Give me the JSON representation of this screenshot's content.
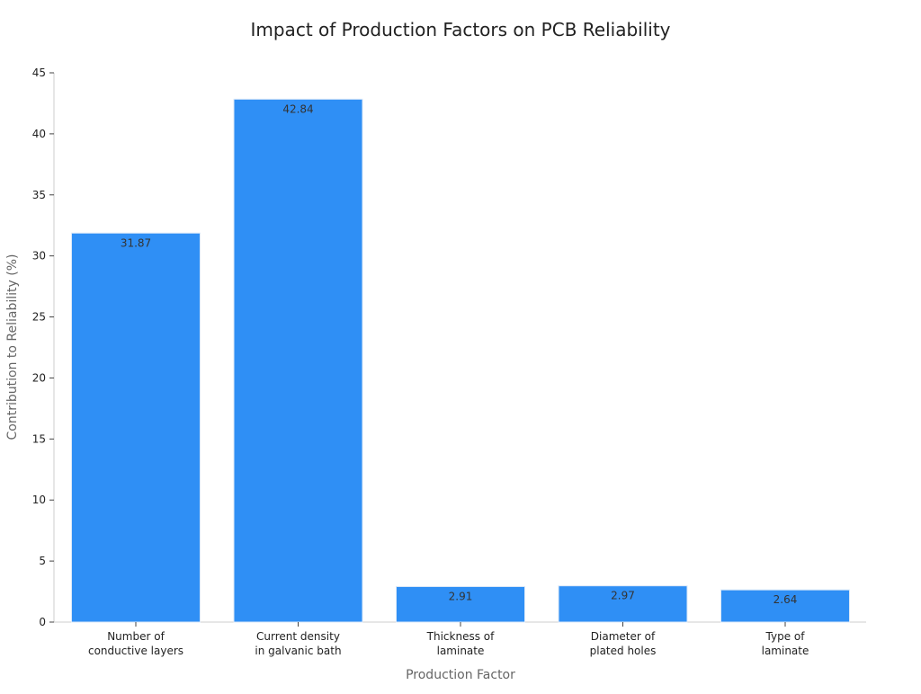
{
  "chart_data": {
    "type": "bar",
    "title": "Impact of Production Factors on PCB Reliability",
    "xlabel": "Production Factor",
    "ylabel": "Contribution to Reliability (%)",
    "ylim": [
      0,
      45
    ],
    "yticks": [
      0,
      5,
      10,
      15,
      20,
      25,
      30,
      35,
      40,
      45
    ],
    "categories": [
      [
        "Number of",
        "conductive layers"
      ],
      [
        "Current density",
        "in galvanic bath"
      ],
      [
        "Thickness of",
        "laminate"
      ],
      [
        "Diameter of",
        "plated holes"
      ],
      [
        "Type of",
        "laminate"
      ]
    ],
    "values": [
      31.87,
      42.84,
      2.91,
      2.97,
      2.64
    ],
    "value_labels": [
      "31.87",
      "42.84",
      "2.91",
      "2.97",
      "2.64"
    ],
    "grid": false,
    "legend": "none",
    "colors": {
      "bar": "#2f8ff5",
      "bar_edge": "#dce9f8",
      "axis": "#cccccc",
      "text": "#222222",
      "axis_label": "#666666"
    }
  }
}
